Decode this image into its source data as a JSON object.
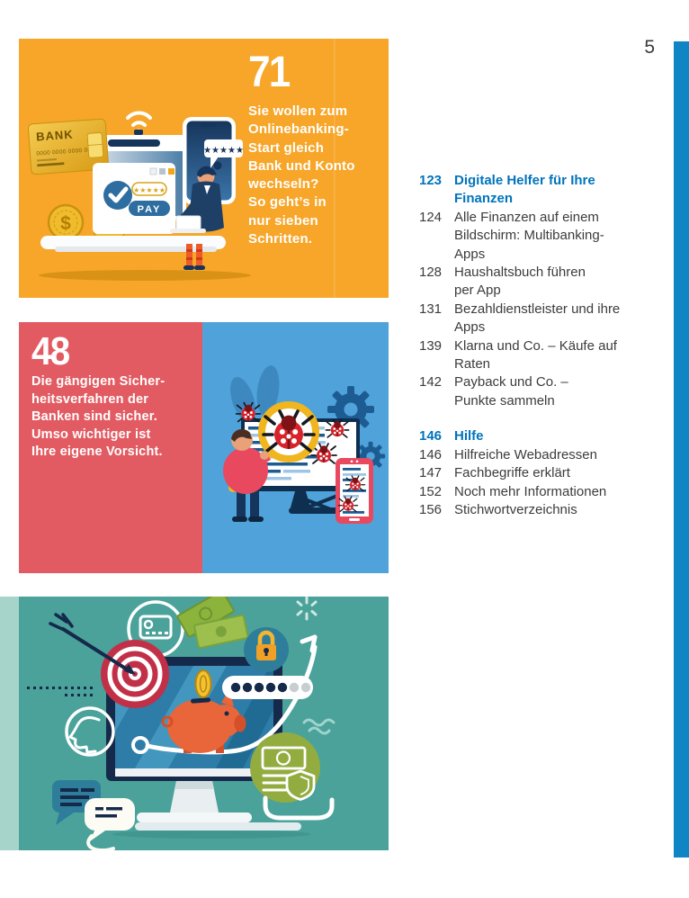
{
  "page": {
    "number": "5"
  },
  "colors": {
    "accent_bar": "#0f85c5",
    "toc_heading_blue": "#0073bc",
    "body_text": "#3c3c3b",
    "panel_orange": "#f7a629",
    "panel_red": "#e25b62",
    "panel_blue": "#4fa3da",
    "panel_teal": "#4aa29b",
    "panel_teal_strip": "#a6d4ca"
  },
  "feature_panels": [
    {
      "number": "71",
      "text": "Sie wollen zum\nOnlinebanking-\nStart gleich\nBank und Konto\nwechseln?\nSo geht’s in\nnur sieben\nSchritten."
    },
    {
      "number": "48",
      "text": "Die gängigen Sicher-\nheitsverfahren der\nBanken sind sicher.\nUmso wichtiger ist\nIhre eigene Vorsicht."
    }
  ],
  "illustration_texts": {
    "bank_card_label": "BANK",
    "bank_card_number": "0000 0000 0000 0000",
    "pay_button": "PAY",
    "rating_stars": "★★★★★",
    "bubble_stars": "★★★★★"
  },
  "toc": {
    "sections": [
      {
        "number": "123",
        "title": "Digitale Helfer für Ihre\nFinanzen",
        "entries": [
          {
            "number": "124",
            "text": "Alle Finanzen auf einem\nBildschirm: Multibanking-\nApps"
          },
          {
            "number": "128",
            "text": "Haushaltsbuch führen\nper App"
          },
          {
            "number": "131",
            "text": "Bezahldienstleister und ihre\nApps"
          },
          {
            "number": "139",
            "text": "Klarna und Co. – Käufe auf\nRaten"
          },
          {
            "number": "142",
            "text": "Payback und Co. –\nPunkte sammeln"
          }
        ]
      },
      {
        "number": "146",
        "title": "Hilfe",
        "entries": [
          {
            "number": "146",
            "text": "Hilfreiche Webadressen"
          },
          {
            "number": "147",
            "text": "Fachbegriffe erklärt"
          },
          {
            "number": "152",
            "text": "Noch mehr Informationen"
          },
          {
            "number": "156",
            "text": "Stichwortverzeichnis"
          }
        ]
      }
    ]
  }
}
